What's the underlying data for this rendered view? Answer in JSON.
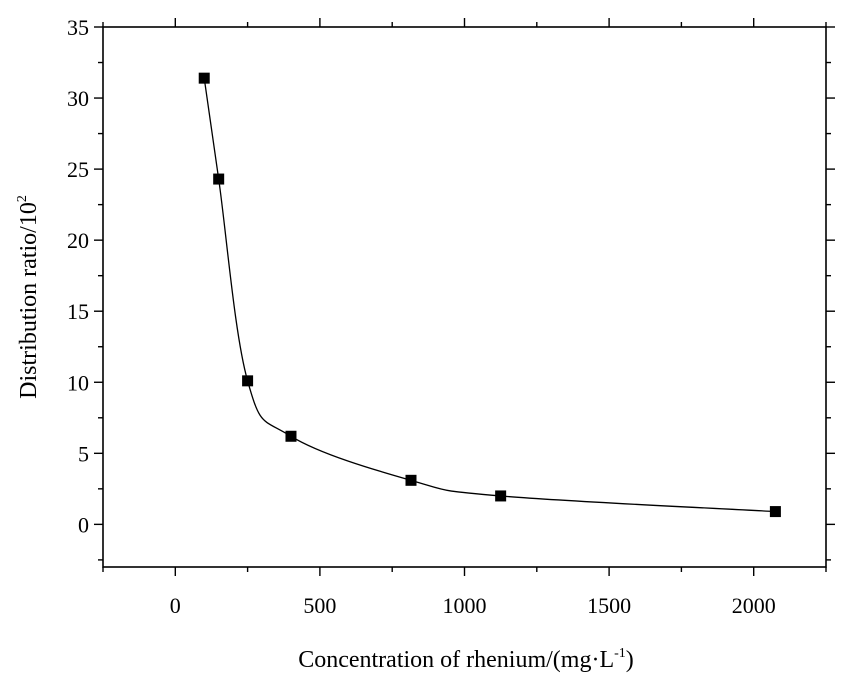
{
  "chart_data": {
    "type": "line",
    "xlabel": "Concentration of rhenium/(mg·L",
    "xlabel_superscript": "-1",
    "xlabel_suffix": ")",
    "ylabel": "Distribution ratio/10",
    "ylabel_superscript": "2",
    "xlim": [
      -250,
      2250
    ],
    "ylim": [
      -3,
      35
    ],
    "x_ticks": [
      0,
      500,
      1000,
      1500,
      2000
    ],
    "x_tick_labels": [
      "0",
      "500",
      "1000",
      "1500",
      "2000"
    ],
    "y_ticks": [
      0,
      5,
      10,
      15,
      20,
      25,
      30,
      35
    ],
    "y_tick_labels": [
      "0",
      "5",
      "10",
      "15",
      "20",
      "25",
      "30",
      "35"
    ],
    "grid": false,
    "marker": "square",
    "series": [
      {
        "x": [
          100,
          150,
          250,
          400,
          815,
          1125,
          2075
        ],
        "y": [
          31.4,
          24.3,
          10.1,
          6.2,
          3.1,
          2.0,
          0.9
        ]
      }
    ]
  }
}
